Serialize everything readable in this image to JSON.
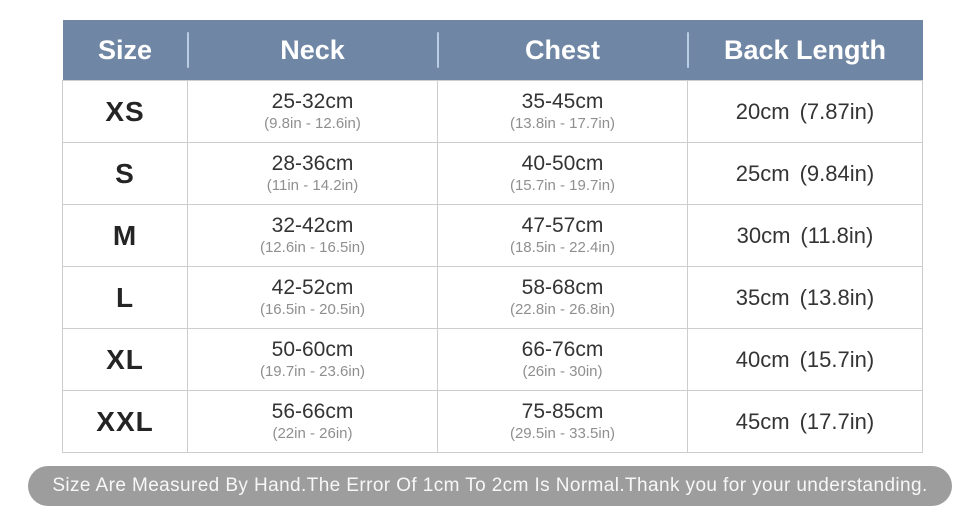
{
  "table": {
    "headers": [
      "Size",
      "Neck",
      "Chest",
      "Back Length"
    ],
    "rows": [
      {
        "size": "XS",
        "neck_cm": "25-32cm",
        "neck_in": "(9.8in - 12.6in)",
        "chest_cm": "35-45cm",
        "chest_in": "(13.8in - 17.7in)",
        "back_cm": "20cm",
        "back_in": "(7.87in)"
      },
      {
        "size": "S",
        "neck_cm": "28-36cm",
        "neck_in": "(11in - 14.2in)",
        "chest_cm": "40-50cm",
        "chest_in": "(15.7in - 19.7in)",
        "back_cm": "25cm",
        "back_in": "(9.84in)"
      },
      {
        "size": "M",
        "neck_cm": "32-42cm",
        "neck_in": "(12.6in - 16.5in)",
        "chest_cm": "47-57cm",
        "chest_in": "(18.5in - 22.4in)",
        "back_cm": "30cm",
        "back_in": "(11.8in)"
      },
      {
        "size": "L",
        "neck_cm": "42-52cm",
        "neck_in": "(16.5in - 20.5in)",
        "chest_cm": "58-68cm",
        "chest_in": "(22.8in - 26.8in)",
        "back_cm": "35cm",
        "back_in": "(13.8in)"
      },
      {
        "size": "XL",
        "neck_cm": "50-60cm",
        "neck_in": "(19.7in - 23.6in)",
        "chest_cm": "66-76cm",
        "chest_in": "(26in - 30in)",
        "back_cm": "40cm",
        "back_in": "(15.7in)"
      },
      {
        "size": "XXL",
        "neck_cm": "56-66cm",
        "neck_in": "(22in - 26in)",
        "chest_cm": "75-85cm",
        "chest_in": "(29.5in - 33.5in)",
        "back_cm": "45cm",
        "back_in": "(17.7in)"
      }
    ]
  },
  "footer": {
    "note": "Size Are Measured By Hand.The Error Of 1cm To 2cm Is Normal.Thank you for your understanding."
  },
  "colors": {
    "page_bg": "#ffffff",
    "header_bg": "#6f87a5",
    "header_text": "#ffffff",
    "header_divider": "#b9cde4",
    "grid_border": "#cdcdcd",
    "size_text": "#242424",
    "value_text": "#343434",
    "subvalue_text": "#8f8f8f",
    "note_bg": "#9d9d9d",
    "note_text": "#f7f7f7"
  },
  "chart_data": {
    "type": "table",
    "title": "Pet garment size chart",
    "columns": [
      "Size",
      "Neck",
      "Chest",
      "Back Length"
    ],
    "rows": [
      [
        "XS",
        "25-32cm (9.8in - 12.6in)",
        "35-45cm (13.8in - 17.7in)",
        "20cm (7.87in)"
      ],
      [
        "S",
        "28-36cm (11in - 14.2in)",
        "40-50cm (15.7in - 19.7in)",
        "25cm (9.84in)"
      ],
      [
        "M",
        "32-42cm (12.6in - 16.5in)",
        "47-57cm (18.5in - 22.4in)",
        "30cm (11.8in)"
      ],
      [
        "L",
        "42-52cm (16.5in - 20.5in)",
        "58-68cm (22.8in - 26.8in)",
        "35cm (13.8in)"
      ],
      [
        "XL",
        "50-60cm (19.7in - 23.6in)",
        "66-76cm (26in - 30in)",
        "40cm (15.7in)"
      ],
      [
        "XXL",
        "56-66cm (22in - 26in)",
        "75-85cm (29.5in - 33.5in)",
        "45cm (17.7in)"
      ]
    ],
    "note": "Size Are Measured By Hand.The Error Of 1cm To 2cm Is Normal.Thank you for your understanding."
  }
}
